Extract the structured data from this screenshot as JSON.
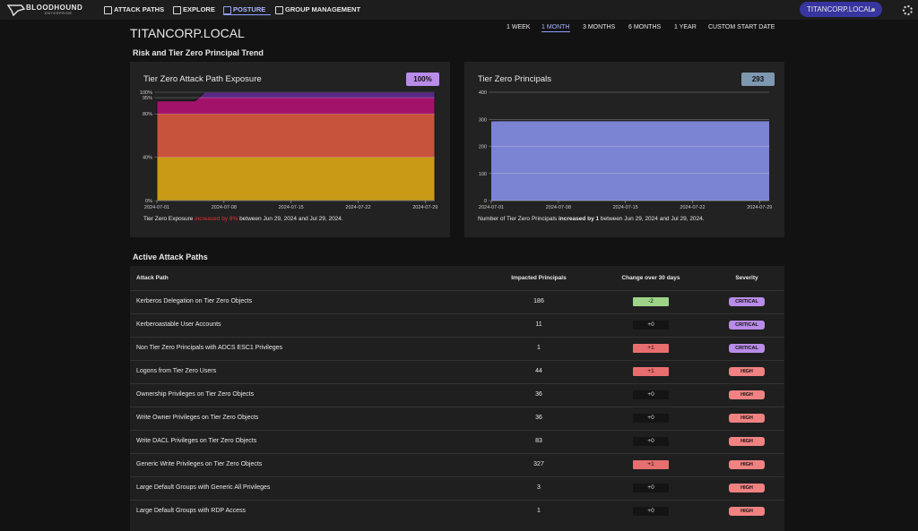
{
  "nav": {
    "brand": "BLOODHOUND",
    "brand_sub": "ENTERPRISE",
    "items": [
      "ATTACK PATHS",
      "EXPLORE",
      "POSTURE",
      "GROUP MANAGEMENT"
    ],
    "active": 2,
    "domain": "TITANCORP.LOCAL"
  },
  "header": {
    "title": "TITANCORP.LOCAL",
    "ranges": [
      "1 WEEK",
      "1 MONTH",
      "3 MONTHS",
      "6 MONTHS",
      "1 YEAR",
      "CUSTOM START DATE"
    ],
    "active_range": 1
  },
  "trend": {
    "heading": "Risk and Tier Zero Principal Trend",
    "exposure": {
      "type": "area",
      "title": "Tier Zero Attack Path Exposure",
      "badge": "100%",
      "x": [
        "2024-07-01",
        "2024-07-05",
        "2024-07-06",
        "2024-07-30"
      ],
      "values": [
        92,
        92,
        100,
        100
      ],
      "xlim": [
        "2024-07-01",
        "2024-07-30"
      ],
      "xticks": [
        "2024-07-01",
        "2024-07-08",
        "2024-07-15",
        "2024-07-22",
        "2024-07-29"
      ],
      "ylim": [
        0,
        100
      ],
      "yticks": [
        {
          "value": 0,
          "label": "0%"
        },
        {
          "value": 40,
          "label": "40%"
        },
        {
          "value": 80,
          "label": "80%"
        },
        {
          "value": 95,
          "label": "95%"
        },
        {
          "value": 100,
          "label": "100%"
        }
      ],
      "bands": [
        {
          "from": 0,
          "to": 40,
          "color": "#c99a16"
        },
        {
          "from": 40,
          "to": 80,
          "color": "#c8533c"
        },
        {
          "from": 80,
          "to": 95,
          "color": "#a3126a"
        },
        {
          "from": 95,
          "to": 100,
          "color": "#572a86"
        }
      ],
      "summary": [
        "Tier Zero Exposure ",
        "increased by 8%",
        " between Jun 29, 2024 and Jul 29, 2024."
      ]
    },
    "principals": {
      "type": "area",
      "title": "Tier Zero Principals",
      "badge": "293",
      "color": "#7b83d3",
      "x": [
        "2024-07-01",
        "2024-07-02",
        "2024-07-30"
      ],
      "values": [
        292,
        293,
        293
      ],
      "xlim": [
        "2024-07-01",
        "2024-07-30"
      ],
      "xticks": [
        "2024-07-01",
        "2024-07-08",
        "2024-07-15",
        "2024-07-22",
        "2024-07-29"
      ],
      "ylim": [
        0,
        400
      ],
      "yticks": [
        0,
        100,
        200,
        300,
        400
      ],
      "summary": [
        "Number of Tier Zero Principals ",
        "increased by 1",
        " between Jun 29, 2024 and Jul 29, 2024."
      ]
    }
  },
  "attack_paths": {
    "heading": "Active Attack Paths",
    "columns": [
      "Attack Path",
      "Impacted Principals",
      "Change over 30 days",
      "Severity"
    ],
    "rows": [
      [
        "Kerberos Delegation on Tier Zero Objects",
        186,
        "-2",
        "CRITICAL"
      ],
      [
        "Kerberoastable User Accounts",
        11,
        "+0",
        "CRITICAL"
      ],
      [
        "Non Tier Zero Principals with ADCS ESC1 Privileges",
        1,
        "+1",
        "CRITICAL"
      ],
      [
        "Logons from Tier Zero Users",
        44,
        "+1",
        "HIGH"
      ],
      [
        "Ownership Privileges on Tier Zero Objects",
        36,
        "+0",
        "HIGH"
      ],
      [
        "Write Owner Privileges on Tier Zero Objects",
        36,
        "+0",
        "HIGH"
      ],
      [
        "Write DACL Privileges on Tier Zero Objects",
        83,
        "+0",
        "HIGH"
      ],
      [
        "Generic Write Privileges on Tier Zero Objects",
        327,
        "+1",
        "HIGH"
      ],
      [
        "Large Default Groups with Generic All Privileges",
        3,
        "+0",
        "HIGH"
      ],
      [
        "Large Default Groups with RDP Access",
        1,
        "+0",
        "HIGH"
      ]
    ]
  }
}
